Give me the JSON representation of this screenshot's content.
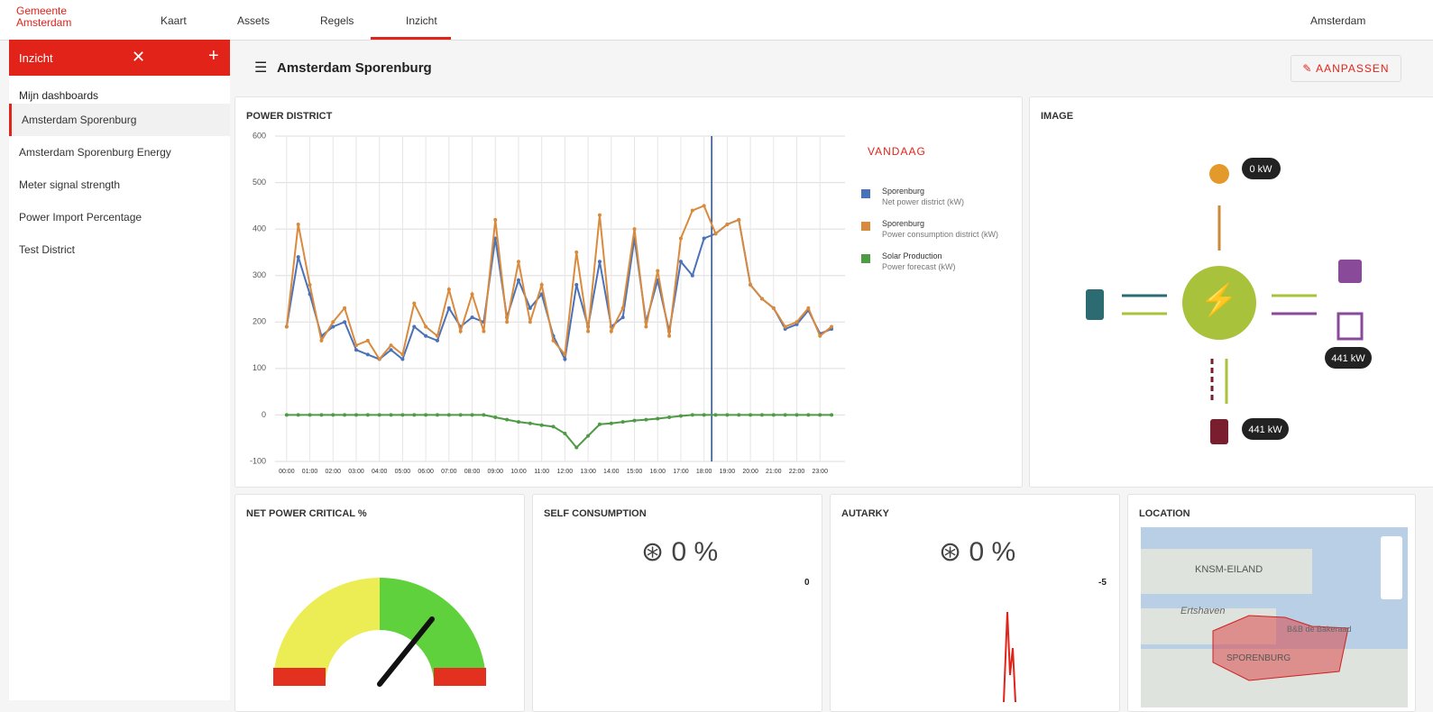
{
  "nav": {
    "logo_line1": "Gemeente",
    "logo_line2": "Amsterdam",
    "tabs": [
      "Kaart",
      "Assets",
      "Regels",
      "Inzicht"
    ],
    "realm": "Amsterdam"
  },
  "sidebar": {
    "title": "Inzicht",
    "section": "Mijn dashboards",
    "items": [
      "Amsterdam Sporenburg",
      "Amsterdam Sporenburg Energy",
      "Meter signal strength",
      "Power Import Percentage",
      "Test District"
    ]
  },
  "header": {
    "title": "Amsterdam Sporenburg",
    "edit_button": "AANPASSEN"
  },
  "chart_data": {
    "type": "line",
    "title": "POWER DISTRICT",
    "period_button": "VANDAAG",
    "x": [
      0,
      0.5,
      1,
      1.5,
      2,
      2.5,
      3,
      3.5,
      4,
      4.5,
      5,
      5.5,
      6,
      6.5,
      7,
      7.5,
      8,
      8.5,
      9,
      9.5,
      10,
      10.5,
      11,
      11.5,
      12,
      12.5,
      13,
      13.5,
      14,
      14.5,
      15,
      15.5,
      16,
      16.5,
      17,
      17.5,
      18,
      18.5,
      19,
      19.5,
      20,
      20.5,
      21,
      21.5,
      22,
      22.5,
      23,
      23.5
    ],
    "series": [
      {
        "name": "Sporenburg",
        "detail": "Net power district (kW)",
        "color": "#4a72b8",
        "values": [
          190,
          340,
          260,
          170,
          190,
          200,
          140,
          130,
          120,
          140,
          120,
          190,
          170,
          160,
          230,
          190,
          210,
          200,
          380,
          210,
          290,
          230,
          260,
          170,
          120,
          280,
          190,
          330,
          190,
          210,
          380,
          200,
          290,
          180,
          330,
          300,
          380,
          390,
          410,
          420,
          280,
          250,
          230,
          185,
          195,
          225,
          175,
          185
        ]
      },
      {
        "name": "Sporenburg",
        "detail": "Power consumption district (kW)",
        "color": "#d98a3d",
        "values": [
          190,
          410,
          280,
          160,
          200,
          230,
          150,
          160,
          120,
          150,
          130,
          240,
          190,
          170,
          270,
          180,
          260,
          180,
          420,
          200,
          330,
          200,
          280,
          160,
          130,
          350,
          180,
          430,
          180,
          230,
          400,
          190,
          310,
          170,
          380,
          440,
          450,
          390,
          410,
          420,
          280,
          250,
          230,
          190,
          200,
          230,
          170,
          190
        ]
      },
      {
        "name": "Solar Production",
        "detail": "Power forecast (kW)",
        "color": "#4e9a45",
        "values": [
          0,
          0,
          0,
          0,
          0,
          0,
          0,
          0,
          0,
          0,
          0,
          0,
          0,
          0,
          0,
          0,
          0,
          0,
          -5,
          -10,
          -15,
          -18,
          -22,
          -25,
          -40,
          -70,
          -45,
          -20,
          -18,
          -15,
          -12,
          -10,
          -8,
          -5,
          -2,
          0,
          0,
          0,
          0,
          0,
          0,
          0,
          0,
          0,
          0,
          0,
          0,
          0
        ]
      }
    ],
    "xlim": [
      -0.5,
      24.08
    ],
    "xticks": [
      {
        "value": 0,
        "label": "00:00"
      },
      {
        "value": 1,
        "label": "01:00"
      },
      {
        "value": 2,
        "label": "02:00"
      },
      {
        "value": 3,
        "label": "03:00"
      },
      {
        "value": 4,
        "label": "04:00"
      },
      {
        "value": 5,
        "label": "05:00"
      },
      {
        "value": 6,
        "label": "06:00"
      },
      {
        "value": 7,
        "label": "07:00"
      },
      {
        "value": 8,
        "label": "08:00"
      },
      {
        "value": 9,
        "label": "09:00"
      },
      {
        "value": 10,
        "label": "10:00"
      },
      {
        "value": 11,
        "label": "11:00"
      },
      {
        "value": 12,
        "label": "12:00"
      },
      {
        "value": 13,
        "label": "13:00"
      },
      {
        "value": 14,
        "label": "14:00"
      },
      {
        "value": 15,
        "label": "15:00"
      },
      {
        "value": 16,
        "label": "16:00"
      },
      {
        "value": 17,
        "label": "17:00"
      },
      {
        "value": 18,
        "label": "18:00"
      },
      {
        "value": 19,
        "label": "19:00"
      },
      {
        "value": 20,
        "label": "20:00"
      },
      {
        "value": 21,
        "label": "21:00"
      },
      {
        "value": 22,
        "label": "22:00"
      },
      {
        "value": 23,
        "label": "23:00"
      }
    ],
    "ylim": [
      -100,
      600
    ],
    "yticks": [
      -100,
      0,
      100,
      200,
      300,
      400,
      500,
      600
    ],
    "grid": true,
    "now_x": 18.33
  },
  "image_panel": {
    "title": "IMAGE",
    "solar_label": "0 kW",
    "export_label": "441 kW",
    "import_label": "441 kW"
  },
  "net_power": {
    "title": "NET POWER CRITICAL %"
  },
  "self_consumption": {
    "title": "SELF CONSUMPTION",
    "value": "0",
    "unit": "%",
    "axis_label": "0"
  },
  "autarky": {
    "title": "AUTARKY",
    "value": "0",
    "unit": "%",
    "axis_label": "-5"
  },
  "location": {
    "title": "LOCATION",
    "labels": [
      "KNSM-EILAND",
      "Ertshaven",
      "B&B de Bakeraad",
      "SPORENBURG"
    ]
  }
}
